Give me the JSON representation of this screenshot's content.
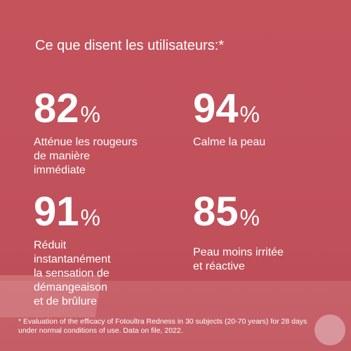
{
  "title": "Ce que disent les utilisateurs:*",
  "stats": [
    {
      "value": "82",
      "unit": "%",
      "lines": [
        "Atténue les rougeurs",
        "de manière",
        "immédiate"
      ]
    },
    {
      "value": "94",
      "unit": "%",
      "lines": [
        "Calme la peau"
      ]
    },
    {
      "value": "91",
      "unit": "%",
      "lines": [
        "Réduit",
        "instantanément",
        "la sensation de",
        "démangeaison",
        "et de brûlure"
      ]
    },
    {
      "value": "85",
      "unit": "%",
      "lines": [
        "Peau moins irritée",
        "et réactive"
      ]
    }
  ],
  "footnote": [
    "* Evaluation of the efficacy of Fotoultra Redness in 30 subjects (20-70 years) for 28 days",
    "under normal conditions of use. Data on file, 2022."
  ]
}
